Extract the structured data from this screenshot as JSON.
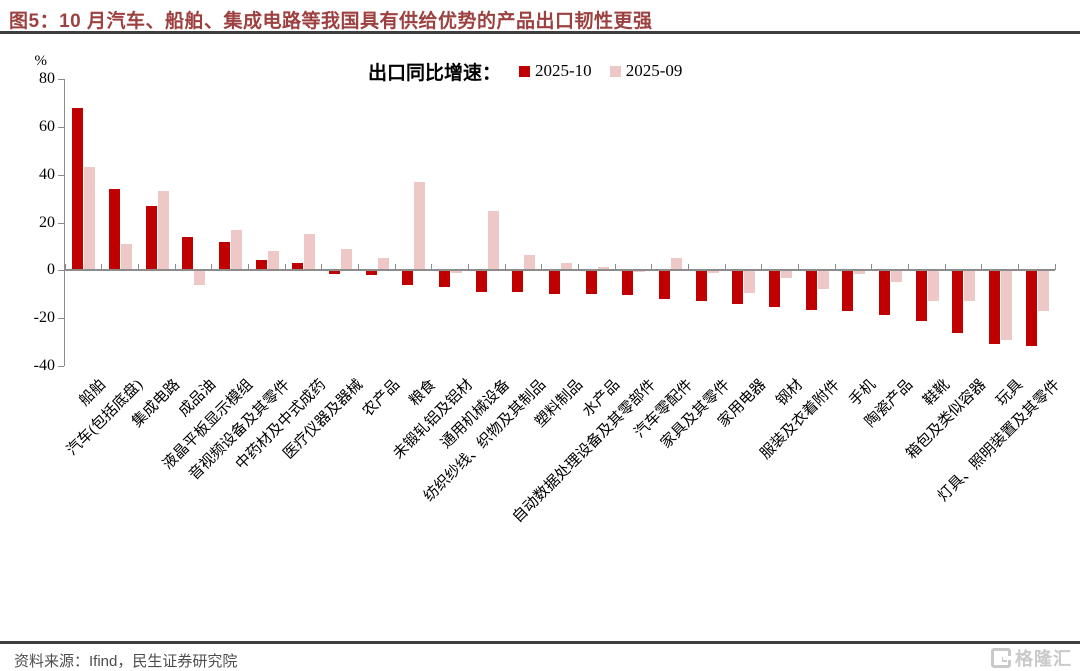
{
  "figure_title": "图5：10 月汽车、船舶、集成电路等我国具有供给优势的产品出口韧性更强",
  "legend": {
    "label": "出口同比增速："
  },
  "chart_data": {
    "type": "bar",
    "title": "出口同比增速",
    "unit": "%",
    "categories": [
      "船舶",
      "汽车(包括底盘)",
      "集成电路",
      "成品油",
      "液晶平板显示模组",
      "音视频设备及其零件",
      "中药材及中式成药",
      "医疗仪器及器械",
      "农产品",
      "粮食",
      "未锻轧铝及铝材",
      "通用机械设备",
      "纺织纱线、织物及其制品",
      "塑料制品",
      "水产品",
      "自动数据处理设备及其零部件",
      "汽车零配件",
      "家具及其零件",
      "家用电器",
      "钢材",
      "服装及衣着附件",
      "手机",
      "陶瓷产品",
      "鞋靴",
      "箱包及类似容器",
      "玩具",
      "灯具、照明装置及其零件"
    ],
    "series": [
      {
        "name": "2025-10",
        "color": "#C00000",
        "values": [
          68,
          34,
          27,
          14,
          12,
          4.5,
          3,
          -1.5,
          -2,
          -6,
          -7,
          -9,
          -9,
          -10,
          -10,
          -10.5,
          -12,
          -13,
          -14,
          -15.5,
          -16.5,
          -17,
          -18.5,
          -21,
          -26,
          -31,
          -31.5
        ]
      },
      {
        "name": "2025-09",
        "color": "#EEC7C7",
        "values": [
          43,
          11,
          33,
          -6,
          17,
          8,
          15,
          9,
          5,
          37,
          -1,
          25,
          6.5,
          3,
          1.5,
          -0.5,
          5,
          -1,
          -9.5,
          -3,
          -8,
          -1.5,
          -5,
          -13,
          -13,
          -29,
          -17
        ]
      }
    ],
    "ylim": [
      -40,
      80
    ],
    "yticks": [
      80,
      60,
      40,
      20,
      0,
      -20,
      -40
    ],
    "grid": false,
    "legend_position": "top-center"
  },
  "footer": {
    "source": "资料来源：Ifind，民生证券研究院",
    "watermark": "格隆汇"
  },
  "colors": {
    "title_red": "#9C4040",
    "rule_dark": "#3F3F3F",
    "axis_gray": "#8C8C8C",
    "source_text": "#4D4D4D",
    "watermark_gray": "#C9C9C9"
  }
}
